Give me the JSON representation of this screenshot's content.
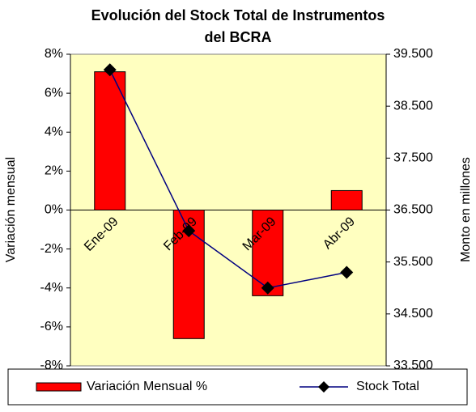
{
  "chart_data": {
    "type": "bar_line",
    "title": [
      "Evolución del Stock Total de Instrumentos",
      "del BCRA"
    ],
    "y_label": "Variación mensual",
    "y2_label": "Monto en millones",
    "categories": [
      "Ene-09",
      "Feb-09",
      "Mar-09",
      "Abr-09"
    ],
    "series": [
      {
        "name": "Variación Mensual %",
        "color": "#ff0000",
        "type": "bar",
        "values": [
          7.1,
          -6.6,
          -4.4,
          1.0
        ]
      },
      {
        "name": "Stock Total",
        "color": "#000080",
        "type": "line",
        "axis": "y2",
        "values": [
          39200,
          36100,
          35000,
          35300
        ]
      }
    ],
    "ylim": [
      -8,
      8
    ],
    "yticks": [
      {
        "value": -8,
        "label": "-8%"
      },
      {
        "value": -6,
        "label": "-6%"
      },
      {
        "value": -4,
        "label": "-4%"
      },
      {
        "value": -2,
        "label": "-2%"
      },
      {
        "value": 0,
        "label": "0%"
      },
      {
        "value": 2,
        "label": "2%"
      },
      {
        "value": 4,
        "label": "4%"
      },
      {
        "value": 6,
        "label": "6%"
      },
      {
        "value": 8,
        "label": "8%"
      }
    ],
    "y2lim": [
      33500,
      39500
    ],
    "y2ticks": [
      {
        "value": 33500,
        "label": "33.500"
      },
      {
        "value": 34500,
        "label": "34.500"
      },
      {
        "value": 35500,
        "label": "35.500"
      },
      {
        "value": 36500,
        "label": "36.500"
      },
      {
        "value": 37500,
        "label": "37.500"
      },
      {
        "value": 38500,
        "label": "38.500"
      },
      {
        "value": 39500,
        "label": "39.500"
      }
    ],
    "legend": "bottom"
  }
}
